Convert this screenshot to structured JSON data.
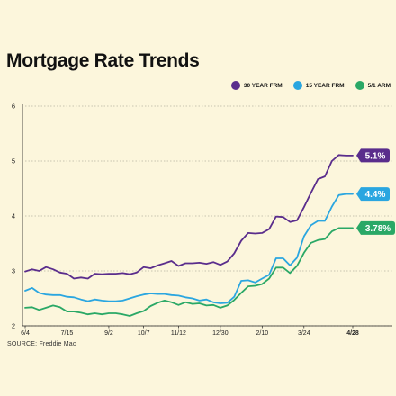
{
  "chart_data": {
    "type": "line",
    "title": "Mortgage Rate Trends",
    "source": "SOURCE: Freddie Mac",
    "xlabel": "",
    "ylabel": "",
    "ylim": [
      2,
      6
    ],
    "yticks": [
      "2",
      "3",
      "4",
      "5",
      "6"
    ],
    "xtick_labels": [
      "6/4",
      "7/15",
      "9/2",
      "10/7",
      "11/12",
      "12/30",
      "2/10",
      "3/24",
      "4/28"
    ],
    "xtick_index": [
      0,
      6,
      12,
      17,
      22,
      28,
      34,
      40,
      47
    ],
    "grid": true,
    "legend": "top-right",
    "series": [
      {
        "name": "30 YEAR FRM",
        "color": "#5a2d8c",
        "end_label": "5.1%",
        "values": [
          2.99,
          3.03,
          3.0,
          3.07,
          3.03,
          2.97,
          2.95,
          2.86,
          2.88,
          2.86,
          2.95,
          2.94,
          2.95,
          2.95,
          2.96,
          2.94,
          2.97,
          3.07,
          3.05,
          3.1,
          3.14,
          3.18,
          3.09,
          3.14,
          3.14,
          3.15,
          3.13,
          3.16,
          3.11,
          3.17,
          3.32,
          3.55,
          3.69,
          3.68,
          3.69,
          3.76,
          3.99,
          3.98,
          3.89,
          3.92,
          4.16,
          4.42,
          4.67,
          4.72,
          5.0,
          5.11,
          5.1,
          5.1
        ]
      },
      {
        "name": "15 YEAR FRM",
        "color": "#2aa6e0",
        "end_label": "4.4%",
        "values": [
          2.64,
          2.69,
          2.6,
          2.57,
          2.56,
          2.56,
          2.53,
          2.52,
          2.48,
          2.45,
          2.48,
          2.46,
          2.45,
          2.45,
          2.46,
          2.5,
          2.54,
          2.57,
          2.59,
          2.58,
          2.58,
          2.56,
          2.55,
          2.52,
          2.5,
          2.46,
          2.48,
          2.43,
          2.41,
          2.42,
          2.53,
          2.82,
          2.83,
          2.79,
          2.86,
          2.93,
          3.23,
          3.23,
          3.1,
          3.24,
          3.63,
          3.83,
          3.91,
          3.91,
          4.17,
          4.38,
          4.4,
          4.4
        ]
      },
      {
        "name": "5/1 ARM",
        "color": "#2aa866",
        "end_label": "3.78%",
        "values": [
          2.33,
          2.34,
          2.29,
          2.33,
          2.37,
          2.34,
          2.26,
          2.26,
          2.24,
          2.21,
          2.23,
          2.21,
          2.23,
          2.23,
          2.21,
          2.18,
          2.23,
          2.27,
          2.36,
          2.42,
          2.46,
          2.43,
          2.38,
          2.43,
          2.4,
          2.41,
          2.37,
          2.38,
          2.33,
          2.37,
          2.47,
          2.6,
          2.72,
          2.73,
          2.76,
          2.86,
          3.06,
          3.06,
          2.96,
          3.09,
          3.33,
          3.51,
          3.56,
          3.58,
          3.72,
          3.78,
          3.78,
          3.78
        ]
      }
    ]
  }
}
